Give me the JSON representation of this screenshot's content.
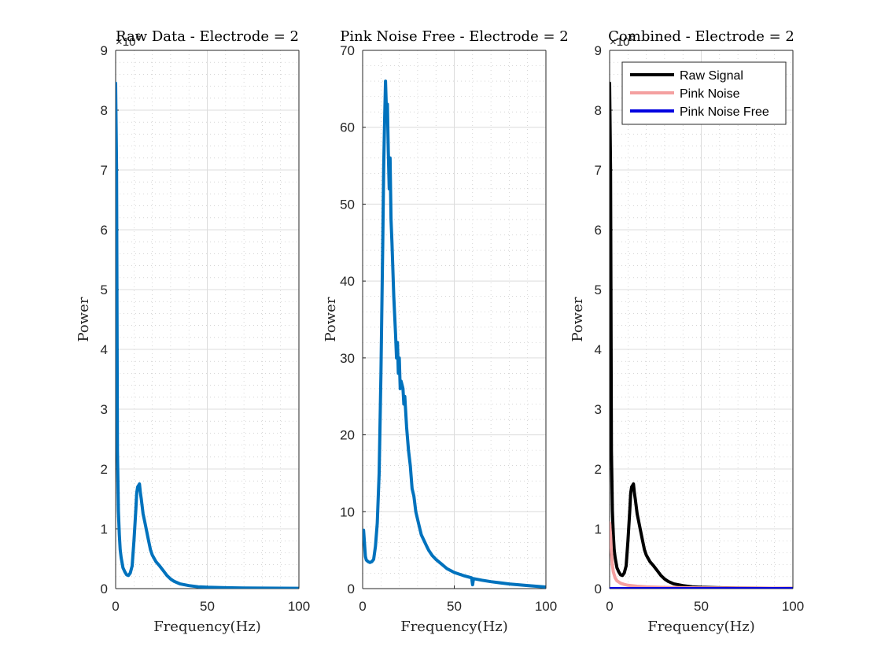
{
  "chart_data": [
    {
      "type": "line",
      "title": "Raw Data - Electrode = 2",
      "xlabel": "Frequency(Hz)",
      "ylabel": "Power",
      "xlim": [
        0,
        100
      ],
      "ylim": [
        0,
        9000000
      ],
      "xticks": [
        "0",
        "50",
        "100"
      ],
      "yticks": [
        "0",
        "1",
        "2",
        "3",
        "4",
        "5",
        "6",
        "7",
        "8",
        "9"
      ],
      "y_exponent": "×10",
      "y_exponent_power": "6",
      "grid": true,
      "minor_grid": true,
      "series": [
        {
          "color": "#0072bd",
          "points": [
            [
              0,
              8450000
            ],
            [
              0.5,
              7000000
            ],
            [
              1,
              2300000
            ],
            [
              1.5,
              1300000
            ],
            [
              2,
              900000
            ],
            [
              2.5,
              650000
            ],
            [
              3,
              520000
            ],
            [
              4,
              350000
            ],
            [
              5,
              280000
            ],
            [
              6,
              230000
            ],
            [
              7,
              220000
            ],
            [
              8,
              260000
            ],
            [
              9,
              380000
            ],
            [
              10,
              800000
            ],
            [
              11,
              1300000
            ],
            [
              11.5,
              1600000
            ],
            [
              12,
              1700000
            ],
            [
              13,
              1750000
            ],
            [
              13.5,
              1600000
            ],
            [
              14,
              1500000
            ],
            [
              15,
              1250000
            ],
            [
              16,
              1100000
            ],
            [
              17,
              950000
            ],
            [
              18,
              800000
            ],
            [
              19,
              650000
            ],
            [
              20,
              560000
            ],
            [
              22,
              450000
            ],
            [
              24,
              380000
            ],
            [
              26,
              300000
            ],
            [
              28,
              220000
            ],
            [
              30,
              160000
            ],
            [
              32,
              120000
            ],
            [
              35,
              80000
            ],
            [
              40,
              50000
            ],
            [
              45,
              30000
            ],
            [
              50,
              22000
            ],
            [
              60,
              15000
            ],
            [
              70,
              10000
            ],
            [
              80,
              8000
            ],
            [
              90,
              6000
            ],
            [
              100,
              5000
            ]
          ]
        }
      ]
    },
    {
      "type": "line",
      "title": "Pink Noise Free - Electrode = 2",
      "xlabel": "Frequency(Hz)",
      "ylabel": "Power",
      "xlim": [
        0,
        100
      ],
      "ylim": [
        0,
        70
      ],
      "xticks": [
        "0",
        "50",
        "100"
      ],
      "yticks": [
        "0",
        "10",
        "20",
        "30",
        "40",
        "50",
        "60",
        "70"
      ],
      "grid": true,
      "minor_grid": true,
      "series": [
        {
          "color": "#0072bd",
          "points": [
            [
              0,
              6.5
            ],
            [
              0.5,
              7.6
            ],
            [
              1,
              6
            ],
            [
              1.5,
              4.2
            ],
            [
              2,
              3.7
            ],
            [
              3,
              3.5
            ],
            [
              4,
              3.4
            ],
            [
              5,
              3.5
            ],
            [
              6,
              3.8
            ],
            [
              7,
              5.5
            ],
            [
              8,
              8.5
            ],
            [
              9,
              15
            ],
            [
              10,
              28
            ],
            [
              11,
              45
            ],
            [
              11.5,
              55
            ],
            [
              12,
              61
            ],
            [
              12.5,
              66
            ],
            [
              13,
              62
            ],
            [
              13.5,
              63
            ],
            [
              14,
              57
            ],
            [
              14.5,
              52
            ],
            [
              15,
              56
            ],
            [
              15.5,
              48
            ],
            [
              16,
              45
            ],
            [
              17,
              38
            ],
            [
              18,
              33
            ],
            [
              18.5,
              30
            ],
            [
              19,
              32
            ],
            [
              19.5,
              28
            ],
            [
              20,
              30
            ],
            [
              20.5,
              26
            ],
            [
              21,
              27
            ],
            [
              22,
              26
            ],
            [
              22.5,
              24
            ],
            [
              23,
              25
            ],
            [
              24,
              21
            ],
            [
              25,
              18
            ],
            [
              26,
              16
            ],
            [
              27,
              13
            ],
            [
              28,
              12
            ],
            [
              29,
              10
            ],
            [
              30,
              9
            ],
            [
              31,
              8
            ],
            [
              32,
              7
            ],
            [
              33,
              6.5
            ],
            [
              34,
              6
            ],
            [
              35,
              5.5
            ],
            [
              36,
              5
            ],
            [
              38,
              4.3
            ],
            [
              40,
              3.8
            ],
            [
              43,
              3.2
            ],
            [
              46,
              2.6
            ],
            [
              50,
              2.1
            ],
            [
              55,
              1.7
            ],
            [
              59.5,
              1.4
            ],
            [
              60,
              0.5
            ],
            [
              60.5,
              1.3
            ],
            [
              65,
              1.1
            ],
            [
              70,
              0.9
            ],
            [
              80,
              0.6
            ],
            [
              90,
              0.4
            ],
            [
              100,
              0.2
            ]
          ]
        }
      ]
    },
    {
      "type": "line",
      "title": "Combined - Electrode = 2",
      "xlabel": "Frequency(Hz)",
      "ylabel": "Power",
      "xlim": [
        0,
        100
      ],
      "ylim": [
        0,
        9000000
      ],
      "xticks": [
        "0",
        "50",
        "100"
      ],
      "yticks": [
        "0",
        "1",
        "2",
        "3",
        "4",
        "5",
        "6",
        "7",
        "8",
        "9"
      ],
      "y_exponent": "×10",
      "y_exponent_power": "6",
      "grid": true,
      "minor_grid": true,
      "legend_position": "top-right",
      "series": [
        {
          "name": "Raw Signal",
          "color": "#000000",
          "points": [
            [
              0,
              8450000
            ],
            [
              0.5,
              7000000
            ],
            [
              1,
              2300000
            ],
            [
              1.5,
              1300000
            ],
            [
              2,
              900000
            ],
            [
              2.5,
              650000
            ],
            [
              3,
              520000
            ],
            [
              4,
              350000
            ],
            [
              5,
              280000
            ],
            [
              6,
              230000
            ],
            [
              7,
              220000
            ],
            [
              8,
              260000
            ],
            [
              9,
              380000
            ],
            [
              10,
              800000
            ],
            [
              11,
              1300000
            ],
            [
              11.5,
              1600000
            ],
            [
              12,
              1700000
            ],
            [
              13,
              1750000
            ],
            [
              13.5,
              1600000
            ],
            [
              14,
              1500000
            ],
            [
              15,
              1250000
            ],
            [
              16,
              1100000
            ],
            [
              17,
              950000
            ],
            [
              18,
              800000
            ],
            [
              19,
              650000
            ],
            [
              20,
              560000
            ],
            [
              22,
              450000
            ],
            [
              24,
              380000
            ],
            [
              26,
              300000
            ],
            [
              28,
              220000
            ],
            [
              30,
              160000
            ],
            [
              32,
              120000
            ],
            [
              35,
              80000
            ],
            [
              40,
              50000
            ],
            [
              45,
              30000
            ],
            [
              50,
              22000
            ],
            [
              60,
              15000
            ],
            [
              70,
              10000
            ],
            [
              80,
              8000
            ],
            [
              90,
              6000
            ],
            [
              100,
              5000
            ]
          ]
        },
        {
          "name": "Pink Noise",
          "color": "#f4a0a0",
          "points": [
            [
              0,
              1100000
            ],
            [
              0.5,
              900000
            ],
            [
              1,
              600000
            ],
            [
              1.5,
              400000
            ],
            [
              2,
              280000
            ],
            [
              3,
              180000
            ],
            [
              4,
              130000
            ],
            [
              6,
              90000
            ],
            [
              8,
              70000
            ],
            [
              10,
              55000
            ],
            [
              15,
              40000
            ],
            [
              20,
              30000
            ],
            [
              30,
              20000
            ],
            [
              50,
              12000
            ],
            [
              75,
              8000
            ],
            [
              100,
              5000
            ]
          ]
        },
        {
          "name": "Pink Noise Free",
          "color": "#0000e0",
          "points": [
            [
              0,
              7
            ],
            [
              10,
              30
            ],
            [
              12.5,
              66
            ],
            [
              20,
              30
            ],
            [
              30,
              9
            ],
            [
              50,
              2
            ],
            [
              100,
              0.2
            ]
          ]
        }
      ]
    }
  ]
}
